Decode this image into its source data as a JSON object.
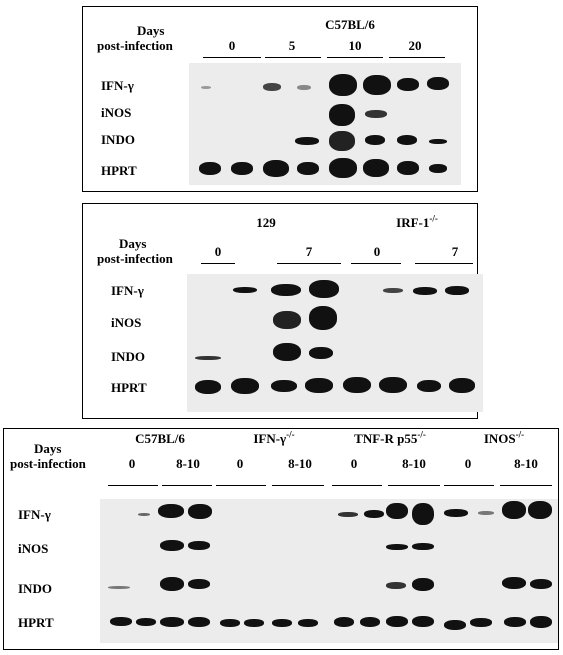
{
  "panel_a": {
    "days_label_1": "Days",
    "days_label_2": "post-infection",
    "strain": "C57BL/6",
    "days": [
      "0",
      "5",
      "10",
      "20"
    ],
    "genes": [
      "IFN-γ",
      "iNOS",
      "INDO",
      "HPRT"
    ]
  },
  "panel_b": {
    "days_label_1": "Days",
    "days_label_2": "post-infection",
    "strain_1": "129",
    "strain_2_main": "IRF-1",
    "strain_2_sup": "-/-",
    "days": [
      "0",
      "7",
      "0",
      "7"
    ],
    "genes": [
      "IFN-γ",
      "iNOS",
      "INDO",
      "HPRT"
    ]
  },
  "panel_c": {
    "days_label_1": "Days",
    "days_label_2": "post-infection",
    "strains": [
      {
        "main": "C57BL/6",
        "sup": ""
      },
      {
        "main": "IFN-γ",
        "sup": "-/-"
      },
      {
        "main": "TNF-R p55",
        "sup": "-/-"
      },
      {
        "main": "INOS",
        "sup": "-/-"
      }
    ],
    "days": [
      "0",
      "8-10",
      "0",
      "8-10",
      "0",
      "8-10",
      "0",
      "8-10"
    ],
    "genes": [
      "IFN-γ",
      "iNOS",
      "INDO",
      "HPRT"
    ]
  }
}
